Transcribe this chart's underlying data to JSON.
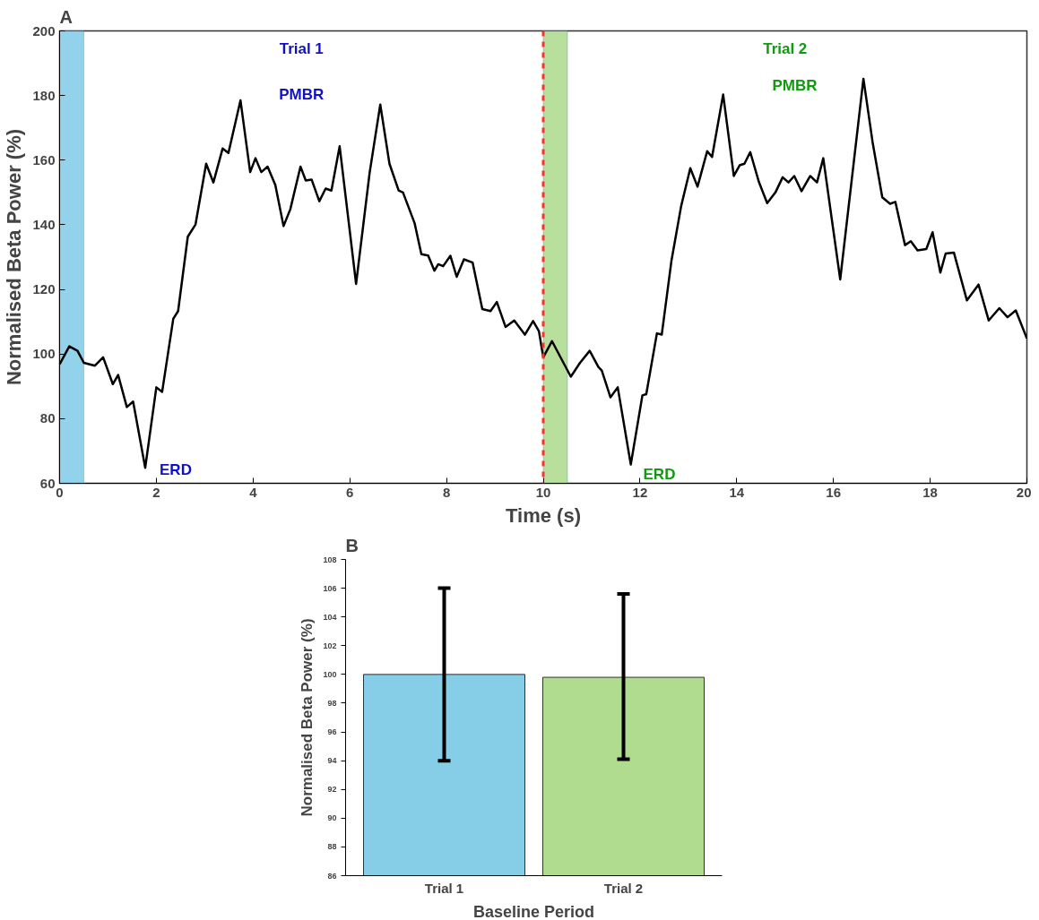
{
  "chart_data": [
    {
      "type": "line",
      "title": "A",
      "xlabel": "Time (s)",
      "ylabel": "Normalised Beta Power (%)",
      "xlim": [
        0,
        20
      ],
      "ylim": [
        60,
        200
      ],
      "xticks": [
        0,
        2,
        4,
        6,
        8,
        10,
        12,
        14,
        16,
        18,
        20
      ],
      "yticks": [
        60,
        80,
        100,
        120,
        140,
        160,
        180,
        200
      ],
      "grid": false,
      "marker": "none",
      "line_style": "solid",
      "series": [
        {
          "color": "#000000",
          "x": [
            0,
            0.2,
            0.37,
            0.5,
            0.73,
            0.9,
            1.1,
            1.21,
            1.39,
            1.52,
            1.77,
            2.0,
            2.12,
            2.35,
            2.45,
            2.65,
            2.81,
            3.03,
            3.18,
            3.37,
            3.49,
            3.74,
            3.94,
            4.05,
            4.17,
            4.3,
            4.46,
            4.63,
            4.77,
            4.98,
            5.09,
            5.21,
            5.37,
            5.5,
            5.62,
            5.79,
            6.13,
            6.41,
            6.63,
            6.82,
            7.01,
            7.1,
            7.34,
            7.48,
            7.62,
            7.75,
            7.83,
            7.93,
            8.08,
            8.21,
            8.36,
            8.54,
            8.74,
            8.91,
            9.04,
            9.22,
            9.4,
            9.62,
            9.79,
            9.91,
            10.0,
            10.18,
            10.57,
            10.76,
            10.96,
            11.14,
            11.21,
            11.39,
            11.54,
            11.81,
            12.05,
            12.13,
            12.35,
            12.45,
            12.65,
            12.85,
            13.04,
            13.19,
            13.39,
            13.49,
            13.72,
            13.94,
            14.06,
            14.16,
            14.28,
            14.46,
            14.63,
            14.8,
            14.95,
            15.07,
            15.19,
            15.34,
            15.52,
            15.66,
            15.79,
            16.14,
            16.62,
            16.81,
            17.01,
            17.17,
            17.28,
            17.48,
            17.6,
            17.74,
            17.92,
            18.05,
            18.21,
            18.32,
            18.49,
            18.76,
            19.0,
            19.21,
            19.43,
            19.6,
            19.77,
            20.0
          ],
          "values": [
            96.8,
            102.4,
            101,
            97.3,
            96.4,
            99,
            90.7,
            93.5,
            83.6,
            85.3,
            64.8,
            89.7,
            88.3,
            110.9,
            113.3,
            136.3,
            140.1,
            158.9,
            153.1,
            163.6,
            162.2,
            178.5,
            156.3,
            160.6,
            156.3,
            158,
            152.3,
            139.6,
            144.8,
            158,
            153.7,
            154,
            147.3,
            151.2,
            150.6,
            164.3,
            121.7,
            156.1,
            177.2,
            158.9,
            150.6,
            150,
            140.5,
            130.9,
            130.5,
            125.8,
            127.8,
            127.2,
            130.4,
            123.9,
            129.3,
            128.3,
            113.9,
            113.3,
            116.1,
            108.4,
            110.4,
            106,
            110.2,
            107.1,
            99,
            104,
            93,
            97.3,
            101,
            96,
            94.9,
            86.6,
            89.7,
            65.8,
            87.2,
            87.6,
            106.4,
            106,
            128.8,
            145.7,
            157.5,
            151.8,
            162.8,
            161,
            180.3,
            155.1,
            158.4,
            158.9,
            162.5,
            153.2,
            146.7,
            150,
            154.7,
            153.1,
            155.1,
            150.4,
            155.1,
            153.1,
            160.6,
            123.1,
            185.2,
            165.5,
            148.5,
            146.5,
            147.1,
            133.7,
            134.9,
            132.1,
            132.5,
            137.7,
            125.2,
            131.1,
            131.4,
            116.6,
            121.5,
            110.4,
            114.2,
            111.4,
            113.5,
            104.8
          ]
        }
      ],
      "bands": [
        {
          "axis": "x",
          "from": 0,
          "to": 0.5,
          "color": "#86cde8"
        },
        {
          "axis": "x",
          "from": 10,
          "to": 10.5,
          "color": "#b0dc90"
        }
      ],
      "ref_lines": [
        {
          "axis": "x",
          "value": 10,
          "color": "#ff3030",
          "line_style": "dashed"
        }
      ],
      "annotations": [
        "Trial 1",
        "PMBR",
        "ERD",
        "Trial 2",
        "PMBR",
        "ERD"
      ]
    },
    {
      "type": "bar",
      "title": "B",
      "xlabel": "Baseline Period",
      "ylabel": "Normalised Beta Power (%)",
      "categories": [
        "Trial 1",
        "Trial 2"
      ],
      "values": [
        100,
        99.8
      ],
      "colors": [
        "#86cde8",
        "#b0dc90"
      ],
      "errors": [
        [
          94,
          106
        ],
        [
          94.1,
          105.6
        ]
      ],
      "ylim": [
        86,
        108
      ],
      "yticks": [
        86,
        88,
        90,
        92,
        94,
        96,
        98,
        100,
        102,
        104,
        106,
        108
      ],
      "grid": false
    }
  ]
}
